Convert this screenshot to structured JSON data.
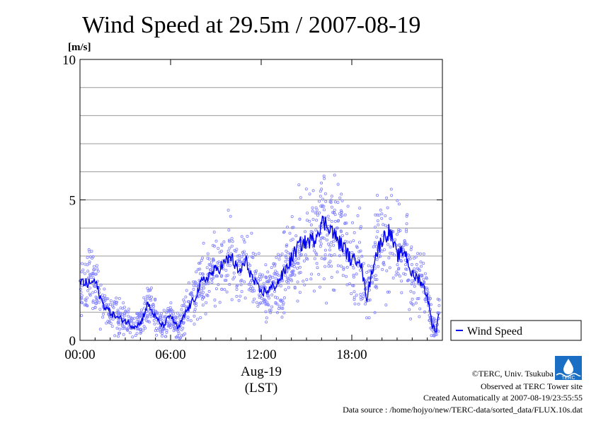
{
  "title": "Wind Speed at 29.5m / 2007-08-19",
  "y_unit": "[m/s]",
  "x_date_label": "Aug-19",
  "x_tz_label": "(LST)",
  "legend_label": "Wind Speed",
  "footer": {
    "copyright": "©TERC, Univ. Tsukuba",
    "observed": "Observed at TERC Tower site",
    "created": "Created Automatically at 2007-08-19/23:55:55",
    "source": "Data source : /home/hojyo/new/TERC-data/sorted_data/FLUX.10s.dat"
  },
  "logo_text": "TERC",
  "colors": {
    "series": "#0000ee",
    "scatter": "#8080ff",
    "grid": "#999999",
    "logo": "#1a6fc4"
  },
  "chart_data": {
    "type": "line",
    "xlabel": "Aug-19",
    "ylabel": "[m/s]",
    "xlim": [
      0,
      24
    ],
    "ylim": [
      0,
      10
    ],
    "x_ticks": [
      0,
      6,
      12,
      18
    ],
    "x_tick_labels": [
      "00:00",
      "06:00",
      "12:00",
      "18:00"
    ],
    "y_ticks": [
      0,
      5,
      10
    ],
    "y_tick_labels": [
      "0",
      "5",
      "10"
    ],
    "grid": true,
    "legend_position": "right",
    "series": [
      {
        "name": "Wind Speed",
        "x": [
          0,
          0.5,
          1,
          1.5,
          2,
          2.5,
          3,
          3.5,
          4,
          4.5,
          5,
          5.5,
          6,
          6.5,
          7,
          7.5,
          8,
          8.5,
          9,
          9.5,
          10,
          10.5,
          11,
          11.5,
          12,
          12.5,
          13,
          13.5,
          14,
          14.5,
          15,
          15.5,
          16,
          16.5,
          17,
          17.5,
          18,
          18.5,
          19,
          19.5,
          20,
          20.5,
          21,
          21.5,
          22,
          22.5,
          23,
          23.3,
          23.6,
          23.8
        ],
        "y": [
          2.1,
          2.0,
          2.1,
          1.3,
          1.0,
          0.8,
          0.7,
          0.5,
          0.6,
          1.3,
          0.8,
          0.5,
          0.9,
          0.4,
          1.0,
          1.4,
          2.0,
          2.3,
          2.5,
          2.7,
          3.0,
          2.4,
          2.8,
          2.1,
          1.7,
          1.8,
          2.0,
          2.4,
          2.9,
          3.4,
          3.5,
          3.6,
          4.2,
          4.1,
          3.6,
          3.3,
          2.8,
          3.0,
          1.5,
          2.9,
          3.6,
          3.9,
          3.0,
          3.2,
          2.3,
          2.2,
          1.6,
          0.6,
          0.3,
          1.2
        ]
      }
    ]
  }
}
